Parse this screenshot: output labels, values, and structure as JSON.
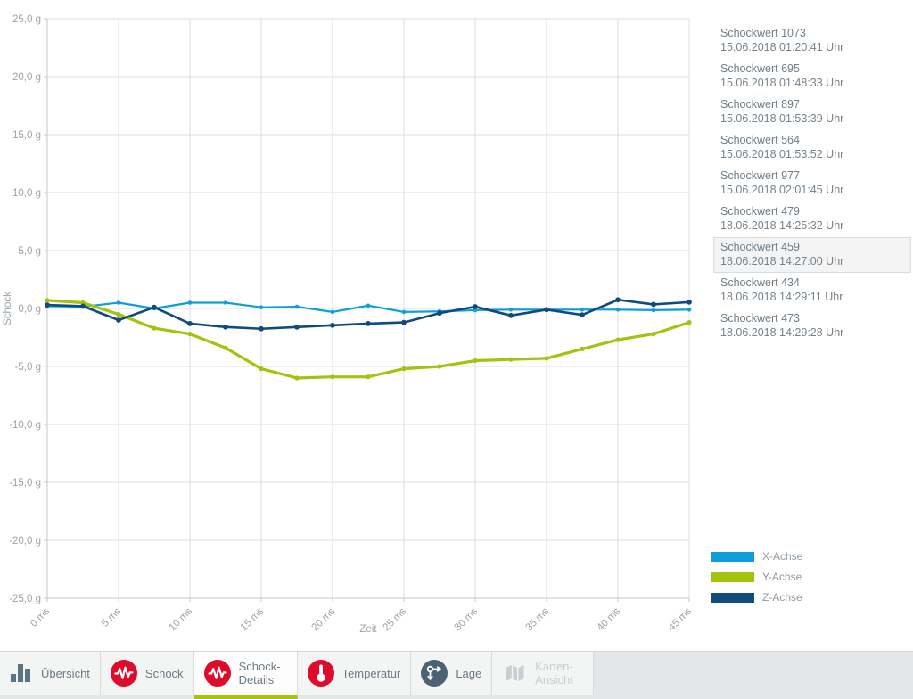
{
  "chart_data": {
    "type": "line",
    "title": "",
    "xlabel": "Zeit",
    "ylabel": "Schock",
    "xlim_ms": [
      0,
      45
    ],
    "ylim": [
      -25,
      25
    ],
    "grid": true,
    "legend_position": "right-bottom",
    "xtick_ms": [
      0,
      5,
      10,
      15,
      20,
      25,
      30,
      35,
      40,
      45
    ],
    "xtick_labels": [
      "0 ms",
      "5 ms",
      "10 ms",
      "15 ms",
      "20 ms",
      "25 ms",
      "30 ms",
      "35 ms",
      "40 ms",
      "45 ms"
    ],
    "ytick_values": [
      25,
      20,
      15,
      10,
      5,
      0,
      -5,
      -10,
      -15,
      -20,
      -25
    ],
    "ytick_labels": [
      "25,0 g",
      "20,0 g",
      "15,0 g",
      "10,0 g",
      "5,0 g",
      "0,0 g",
      "-5,0 g",
      "-10,0 g",
      "-15,0 g",
      "-20,0 g",
      "-25,0 g"
    ],
    "x_ms": [
      0,
      2.5,
      5,
      7.5,
      10,
      12.5,
      15,
      17.5,
      20,
      22.5,
      25,
      27.5,
      30,
      32.5,
      35,
      37.5,
      40,
      42.5,
      45
    ],
    "series": [
      {
        "name": "X-Achse",
        "color": "#0e9fdb",
        "values": [
          0.2,
          0.15,
          0.5,
          0.0,
          0.5,
          0.5,
          0.1,
          0.15,
          -0.3,
          0.25,
          -0.3,
          -0.25,
          -0.15,
          -0.1,
          -0.1,
          -0.1,
          -0.1,
          -0.15,
          -0.1
        ]
      },
      {
        "name": "Y-Achse",
        "color": "#a3c40f",
        "values": [
          0.7,
          0.5,
          -0.5,
          -1.7,
          -2.2,
          -3.4,
          -5.2,
          -6.0,
          -5.9,
          -5.9,
          -5.2,
          -5.0,
          -4.5,
          -4.4,
          -4.3,
          -3.5,
          -2.7,
          -2.2,
          -1.2
        ]
      },
      {
        "name": "Z-Achse",
        "color": "#114a7c",
        "values": [
          0.3,
          0.2,
          -1.0,
          0.1,
          -1.3,
          -1.6,
          -1.75,
          -1.6,
          -1.45,
          -1.3,
          -1.2,
          -0.4,
          0.15,
          -0.6,
          -0.1,
          -0.55,
          0.75,
          0.35,
          0.55
        ]
      }
    ]
  },
  "sidebar": {
    "entries": [
      {
        "title": "Schockwert 1073",
        "time": "15.06.2018 01:20:41 Uhr",
        "selected": false
      },
      {
        "title": "Schockwert 695",
        "time": "15.06.2018 01:48:33 Uhr",
        "selected": false
      },
      {
        "title": "Schockwert 897",
        "time": "15.06.2018 01:53:39 Uhr",
        "selected": false
      },
      {
        "title": "Schockwert 564",
        "time": "15.06.2018 01:53:52 Uhr",
        "selected": false
      },
      {
        "title": "Schockwert 977",
        "time": "15.06.2018 02:01:45 Uhr",
        "selected": false
      },
      {
        "title": "Schockwert 479",
        "time": "18.06.2018 14:25:32 Uhr",
        "selected": false
      },
      {
        "title": "Schockwert 459",
        "time": "18.06.2018 14:27:00 Uhr",
        "selected": true
      },
      {
        "title": "Schockwert 434",
        "time": "18.06.2018 14:29:11 Uhr",
        "selected": false
      },
      {
        "title": "Schockwert 473",
        "time": "18.06.2018 14:29:28 Uhr",
        "selected": false
      }
    ]
  },
  "legend": {
    "items": [
      {
        "label": "X-Achse",
        "color": "#0e9fdb"
      },
      {
        "label": "Y-Achse",
        "color": "#a3c40f"
      },
      {
        "label": "Z-Achse",
        "color": "#114a7c"
      }
    ]
  },
  "tabbar": {
    "tabs": [
      {
        "label": "Übersicht",
        "icon": "bar-chart-icon",
        "state": "normal"
      },
      {
        "label": "Schock",
        "icon": "shock-icon",
        "state": "normal"
      },
      {
        "label": "Schock-Details",
        "icon": "shock-icon",
        "state": "active"
      },
      {
        "label": "Temperatur",
        "icon": "thermometer-icon",
        "state": "normal"
      },
      {
        "label": "Lage",
        "icon": "orientation-icon",
        "state": "normal"
      },
      {
        "label": "Karten-Ansicht",
        "icon": "map-icon",
        "state": "disabled"
      }
    ]
  },
  "colors": {
    "accent_green": "#a6c40d",
    "icon_red": "#de0c2b",
    "icon_slate": "#5c7382",
    "grid": "#dddede",
    "axis": "#c6c8c9",
    "axis_text": "#9aa4ab"
  }
}
